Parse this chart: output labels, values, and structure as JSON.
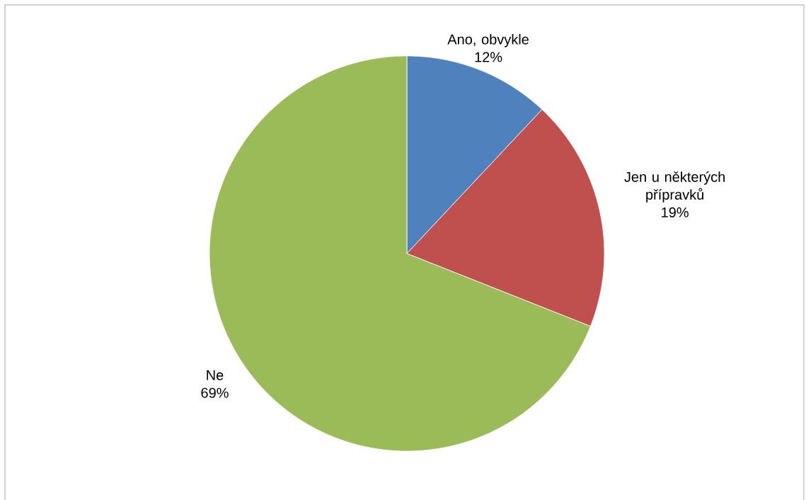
{
  "chart_data": {
    "type": "pie",
    "categories": [
      "Ano, obvykle",
      "Jen u některých přípravků",
      "Ne"
    ],
    "values": [
      12,
      19,
      69
    ],
    "value_labels": [
      "12%",
      "19%",
      "69%"
    ],
    "colors": [
      "#4f81bd",
      "#c0504d",
      "#9bbb59"
    ]
  }
}
